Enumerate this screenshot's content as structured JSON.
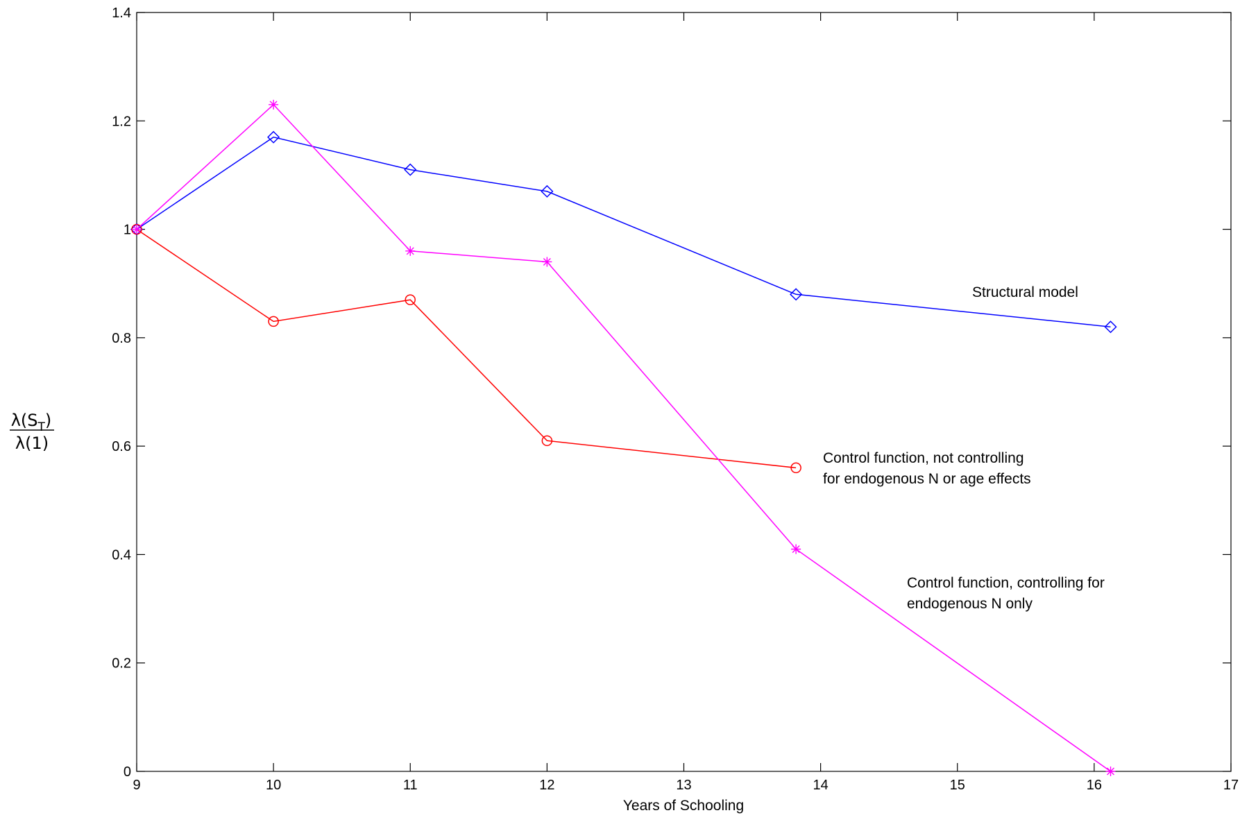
{
  "chart_data": {
    "type": "line",
    "title": "",
    "xlabel": "Years of Schooling",
    "ylabel": {
      "numerator_prefix": "λ(S",
      "numerator_subscript": "T",
      "numerator_suffix": ")",
      "denominator": "λ(1)"
    },
    "xlim": [
      9,
      17
    ],
    "ylim": [
      0,
      1.4
    ],
    "xticks": [
      9,
      10,
      11,
      12,
      13,
      14,
      15,
      16,
      17
    ],
    "xtick_labels": [
      "9",
      "10",
      "11",
      "12",
      "13",
      "14",
      "15",
      "16",
      "17"
    ],
    "yticks": [
      0,
      0.2,
      0.4,
      0.6,
      0.8,
      1,
      1.2,
      1.4
    ],
    "ytick_labels": [
      "0",
      "0.2",
      "0.4",
      "0.6",
      "0.8",
      "1",
      "1.2",
      "1.4"
    ],
    "grid": false,
    "series": [
      {
        "key": "structural",
        "color": "#0000ff",
        "marker": "diamond",
        "x": [
          9,
          10,
          11,
          12,
          13.82,
          16.12
        ],
        "y": [
          1.0,
          1.17,
          1.11,
          1.07,
          0.88,
          0.82
        ]
      },
      {
        "key": "cf_none",
        "color": "#ff0000",
        "marker": "circle",
        "x": [
          9,
          10,
          11,
          12,
          13.82
        ],
        "y": [
          1.0,
          0.83,
          0.87,
          0.61,
          0.56
        ]
      },
      {
        "key": "cf_endog_n",
        "color": "#ff00ff",
        "marker": "asterisk",
        "x": [
          9,
          10,
          11,
          12,
          13.82,
          16.12
        ],
        "y": [
          1.0,
          1.23,
          0.96,
          0.94,
          0.41,
          0.0
        ]
      }
    ],
    "annotations": [
      {
        "key": "structural",
        "lines": [
          "Structural model"
        ]
      },
      {
        "key": "cf_none",
        "lines": [
          "Control function, not controlling",
          "for endogenous N or age effects"
        ]
      },
      {
        "key": "cf_endog_n",
        "lines": [
          "Control function, controlling for",
          "endogenous N only"
        ]
      }
    ]
  }
}
